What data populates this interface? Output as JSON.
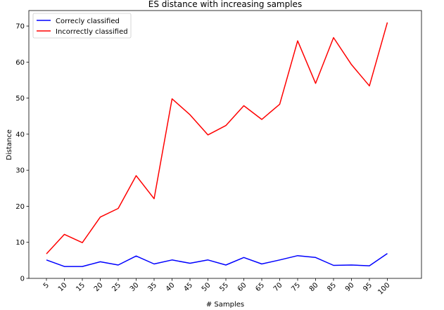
{
  "chart_data": {
    "type": "line",
    "title": "ES distance with increasing samples",
    "xlabel": "# Samples",
    "ylabel": "Distance",
    "x": [
      5,
      10,
      15,
      20,
      25,
      30,
      35,
      40,
      45,
      50,
      55,
      60,
      65,
      70,
      75,
      80,
      85,
      90,
      95,
      100
    ],
    "y_ticks": [
      0,
      10,
      20,
      30,
      40,
      50,
      60,
      70
    ],
    "ylim": [
      0,
      74.3
    ],
    "grid": false,
    "legend_position": "top-left",
    "series": [
      {
        "name": "Correcly classified",
        "color": "#0000ff",
        "values": [
          5.1,
          3.3,
          3.3,
          4.6,
          3.7,
          6.2,
          4.0,
          5.1,
          4.2,
          5.1,
          3.7,
          5.8,
          4.0,
          5.1,
          6.3,
          5.8,
          3.6,
          3.7,
          3.5,
          6.9
        ]
      },
      {
        "name": "Incorrectly classified",
        "color": "#ff0000",
        "values": [
          6.8,
          12.2,
          9.9,
          17.0,
          19.4,
          28.5,
          22.1,
          49.8,
          45.4,
          39.8,
          42.4,
          47.9,
          44.1,
          48.3,
          65.9,
          54.1,
          66.8,
          59.3,
          53.4,
          71.0
        ]
      }
    ]
  }
}
